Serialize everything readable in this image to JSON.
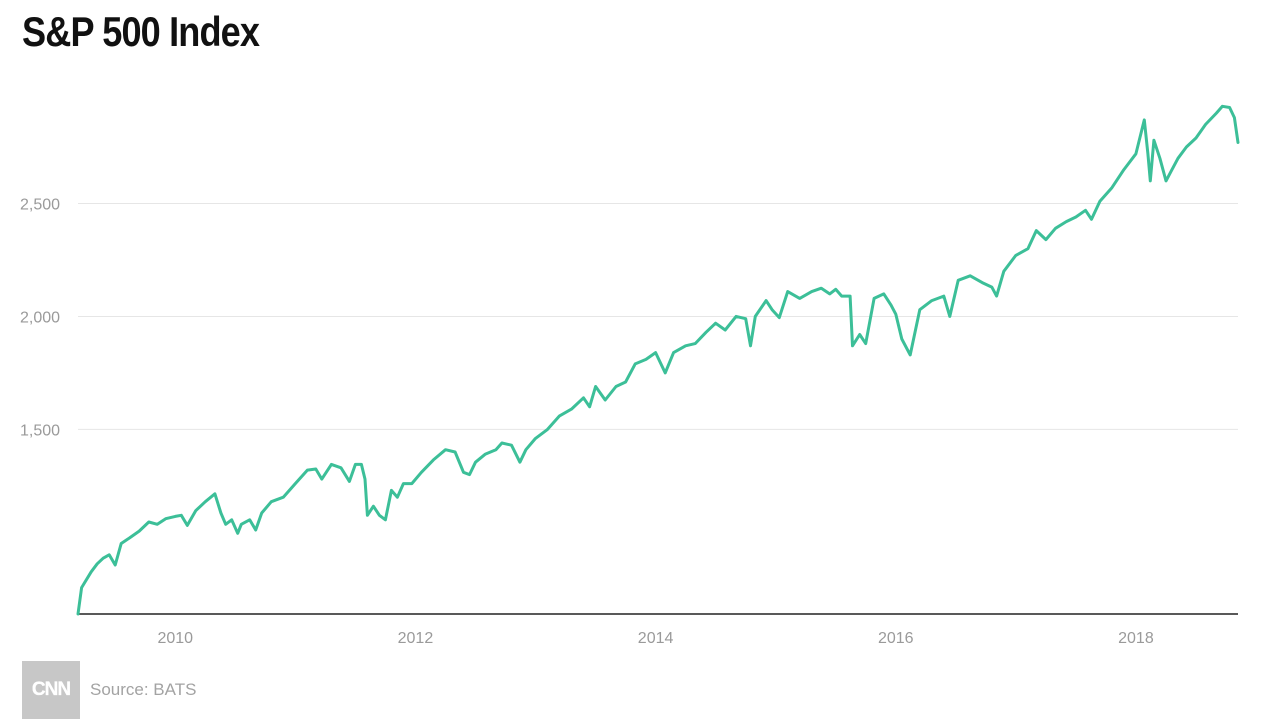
{
  "chart_data": {
    "type": "line",
    "title": "S&P 500 Index",
    "xlabel": "",
    "ylabel": "",
    "x_ticks": [
      "2010",
      "2012",
      "2014",
      "2016",
      "2018"
    ],
    "y_ticks": [
      {
        "value": 1500,
        "label": "1,500"
      },
      {
        "value": 2000,
        "label": "2,000"
      },
      {
        "value": 2500,
        "label": "2,500"
      }
    ],
    "xlim": [
      2009.19,
      2018.85
    ],
    "ylim": [
      683,
      2958
    ],
    "grid": true,
    "line_color": "#3cbf98",
    "series": [
      {
        "name": "",
        "points": [
          [
            2009.19,
            683
          ],
          [
            2009.22,
            800
          ],
          [
            2009.3,
            870
          ],
          [
            2009.35,
            905
          ],
          [
            2009.4,
            930
          ],
          [
            2009.45,
            945
          ],
          [
            2009.5,
            900
          ],
          [
            2009.55,
            995
          ],
          [
            2009.62,
            1020
          ],
          [
            2009.7,
            1050
          ],
          [
            2009.78,
            1090
          ],
          [
            2009.85,
            1080
          ],
          [
            2009.92,
            1105
          ],
          [
            2010.0,
            1115
          ],
          [
            2010.05,
            1120
          ],
          [
            2010.1,
            1075
          ],
          [
            2010.17,
            1140
          ],
          [
            2010.25,
            1180
          ],
          [
            2010.33,
            1215
          ],
          [
            2010.38,
            1130
          ],
          [
            2010.42,
            1080
          ],
          [
            2010.47,
            1100
          ],
          [
            2010.52,
            1040
          ],
          [
            2010.55,
            1080
          ],
          [
            2010.62,
            1100
          ],
          [
            2010.67,
            1055
          ],
          [
            2010.72,
            1130
          ],
          [
            2010.8,
            1180
          ],
          [
            2010.9,
            1200
          ],
          [
            2011.0,
            1260
          ],
          [
            2011.1,
            1320
          ],
          [
            2011.17,
            1325
          ],
          [
            2011.22,
            1280
          ],
          [
            2011.3,
            1345
          ],
          [
            2011.38,
            1330
          ],
          [
            2011.45,
            1270
          ],
          [
            2011.5,
            1345
          ],
          [
            2011.55,
            1345
          ],
          [
            2011.58,
            1280
          ],
          [
            2011.6,
            1120
          ],
          [
            2011.65,
            1160
          ],
          [
            2011.7,
            1120
          ],
          [
            2011.75,
            1100
          ],
          [
            2011.8,
            1230
          ],
          [
            2011.85,
            1200
          ],
          [
            2011.9,
            1260
          ],
          [
            2011.97,
            1260
          ],
          [
            2012.05,
            1310
          ],
          [
            2012.15,
            1365
          ],
          [
            2012.25,
            1410
          ],
          [
            2012.33,
            1400
          ],
          [
            2012.4,
            1310
          ],
          [
            2012.45,
            1300
          ],
          [
            2012.5,
            1355
          ],
          [
            2012.58,
            1390
          ],
          [
            2012.67,
            1410
          ],
          [
            2012.72,
            1440
          ],
          [
            2012.8,
            1430
          ],
          [
            2012.87,
            1355
          ],
          [
            2012.92,
            1410
          ],
          [
            2013.0,
            1460
          ],
          [
            2013.1,
            1500
          ],
          [
            2013.2,
            1560
          ],
          [
            2013.3,
            1590
          ],
          [
            2013.4,
            1640
          ],
          [
            2013.45,
            1600
          ],
          [
            2013.5,
            1690
          ],
          [
            2013.58,
            1630
          ],
          [
            2013.67,
            1690
          ],
          [
            2013.75,
            1710
          ],
          [
            2013.83,
            1790
          ],
          [
            2013.92,
            1810
          ],
          [
            2014.0,
            1840
          ],
          [
            2014.08,
            1750
          ],
          [
            2014.15,
            1840
          ],
          [
            2014.25,
            1870
          ],
          [
            2014.33,
            1880
          ],
          [
            2014.42,
            1930
          ],
          [
            2014.5,
            1970
          ],
          [
            2014.58,
            1940
          ],
          [
            2014.67,
            2000
          ],
          [
            2014.75,
            1990
          ],
          [
            2014.79,
            1870
          ],
          [
            2014.83,
            2000
          ],
          [
            2014.92,
            2070
          ],
          [
            2014.97,
            2030
          ],
          [
            2015.03,
            1995
          ],
          [
            2015.1,
            2110
          ],
          [
            2015.2,
            2080
          ],
          [
            2015.3,
            2110
          ],
          [
            2015.38,
            2125
          ],
          [
            2015.45,
            2100
          ],
          [
            2015.5,
            2120
          ],
          [
            2015.55,
            2090
          ],
          [
            2015.62,
            2090
          ],
          [
            2015.64,
            1870
          ],
          [
            2015.7,
            1920
          ],
          [
            2015.75,
            1880
          ],
          [
            2015.82,
            2080
          ],
          [
            2015.9,
            2100
          ],
          [
            2015.96,
            2050
          ],
          [
            2016.0,
            2010
          ],
          [
            2016.05,
            1900
          ],
          [
            2016.12,
            1830
          ],
          [
            2016.2,
            2030
          ],
          [
            2016.3,
            2070
          ],
          [
            2016.4,
            2090
          ],
          [
            2016.45,
            2000
          ],
          [
            2016.52,
            2160
          ],
          [
            2016.62,
            2180
          ],
          [
            2016.72,
            2150
          ],
          [
            2016.8,
            2130
          ],
          [
            2016.84,
            2090
          ],
          [
            2016.9,
            2200
          ],
          [
            2017.0,
            2270
          ],
          [
            2017.1,
            2300
          ],
          [
            2017.17,
            2380
          ],
          [
            2017.25,
            2340
          ],
          [
            2017.33,
            2390
          ],
          [
            2017.42,
            2420
          ],
          [
            2017.5,
            2440
          ],
          [
            2017.58,
            2470
          ],
          [
            2017.63,
            2430
          ],
          [
            2017.7,
            2510
          ],
          [
            2017.8,
            2570
          ],
          [
            2017.9,
            2650
          ],
          [
            2018.0,
            2720
          ],
          [
            2018.07,
            2870
          ],
          [
            2018.1,
            2720
          ],
          [
            2018.12,
            2600
          ],
          [
            2018.15,
            2780
          ],
          [
            2018.2,
            2700
          ],
          [
            2018.25,
            2600
          ],
          [
            2018.3,
            2650
          ],
          [
            2018.35,
            2700
          ],
          [
            2018.42,
            2750
          ],
          [
            2018.5,
            2790
          ],
          [
            2018.58,
            2850
          ],
          [
            2018.67,
            2900
          ],
          [
            2018.72,
            2930
          ],
          [
            2018.78,
            2925
          ],
          [
            2018.82,
            2880
          ],
          [
            2018.85,
            2770
          ]
        ]
      }
    ]
  },
  "source": {
    "logo_text": "CNN",
    "text": "Source: BATS"
  }
}
